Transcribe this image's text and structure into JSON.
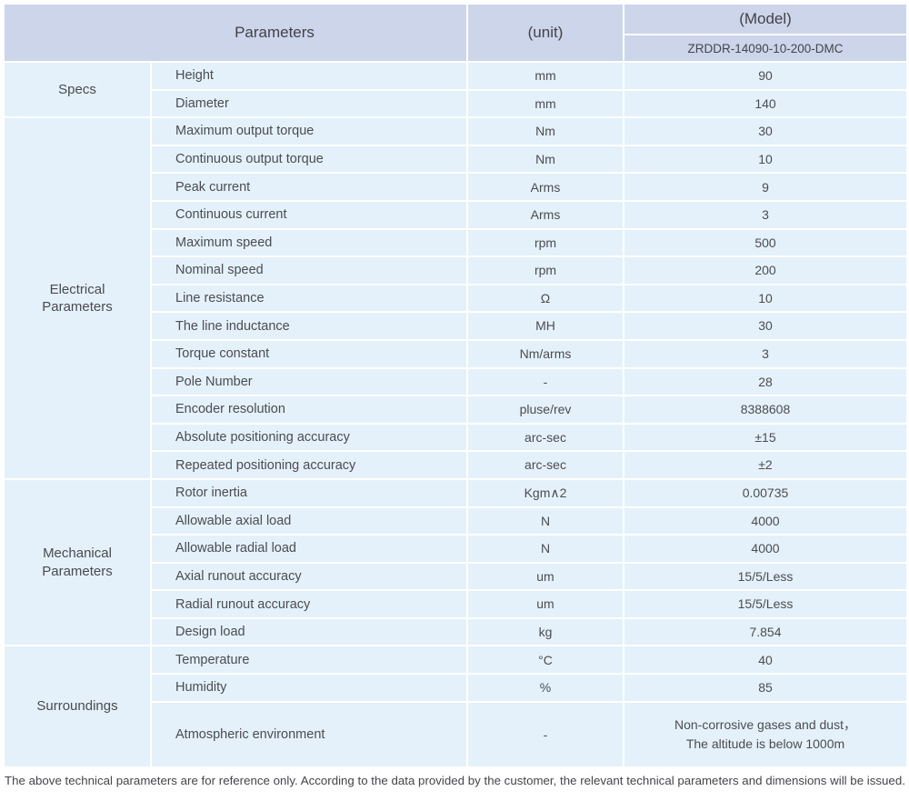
{
  "colors": {
    "header_bg": "#ccd5e9",
    "cell_bg": "#e4f1fa",
    "grid": "#ffffff",
    "text": "#4c4c52"
  },
  "header": {
    "parameters_label": "Parameters",
    "unit_label": "(unit)",
    "model_label": "(Model)",
    "model_value": "ZRDDR-14090-10-200-DMC"
  },
  "table": {
    "sections": [
      {
        "group": "Specs",
        "rows": [
          {
            "name": "Height",
            "unit": "mm",
            "value": "90"
          },
          {
            "name": "Diameter",
            "unit": "mm",
            "value": "140"
          }
        ]
      },
      {
        "group": [
          "Electrical",
          "Parameters"
        ],
        "rows": [
          {
            "name": "Maximum output torque",
            "unit": "Nm",
            "value": "30"
          },
          {
            "name": "Continuous output torque",
            "unit": "Nm",
            "value": "10"
          },
          {
            "name": "Peak current",
            "unit": "Arms",
            "value": "9"
          },
          {
            "name": "Continuous current",
            "unit": "Arms",
            "value": "3"
          },
          {
            "name": "Maximum speed",
            "unit": "rpm",
            "value": "500"
          },
          {
            "name": "Nominal speed",
            "unit": "rpm",
            "value": "200"
          },
          {
            "name": "Line resistance",
            "unit": "Ω",
            "value": "10"
          },
          {
            "name": "The line inductance",
            "unit": "MH",
            "value": "30"
          },
          {
            "name": "Torque constant",
            "unit": "Nm/arms",
            "value": "3"
          },
          {
            "name": "Pole Number",
            "unit": "-",
            "value": "28"
          },
          {
            "name": "Encoder resolution",
            "unit": "pluse/rev",
            "value": "8388608"
          },
          {
            "name": "Absolute positioning accuracy",
            "unit": "arc-sec",
            "value": "±15"
          },
          {
            "name": "Repeated positioning accuracy",
            "unit": "arc-sec",
            "value": "±2"
          }
        ]
      },
      {
        "group": [
          "Mechanical",
          "Parameters"
        ],
        "rows": [
          {
            "name": "Rotor inertia",
            "unit": "Kgm∧2",
            "value": "0.00735"
          },
          {
            "name": "Allowable axial load",
            "unit": "N",
            "value": "4000"
          },
          {
            "name": "Allowable radial load",
            "unit": "N",
            "value": "4000"
          },
          {
            "name": "Axial runout accuracy",
            "unit": "um",
            "value": "15/5/Less"
          },
          {
            "name": "Radial runout accuracy",
            "unit": "um",
            "value": "15/5/Less"
          },
          {
            "name": "Design load",
            "unit": "kg",
            "value": "7.854"
          }
        ]
      },
      {
        "group": "Surroundings",
        "rows": [
          {
            "name": "Temperature",
            "unit": "°C",
            "value": "40"
          },
          {
            "name": "Humidity",
            "unit": "%",
            "value": "85"
          },
          {
            "name": "Atmospheric environment",
            "unit": "-",
            "value": [
              "Non-corrosive gases and dust，",
              "The altitude is below 1000m"
            ],
            "tall": true
          }
        ]
      }
    ]
  },
  "footer": {
    "note": "The above technical parameters are for reference only. According to the data provided by the customer, the relevant technical parameters and dimensions will be issued."
  }
}
